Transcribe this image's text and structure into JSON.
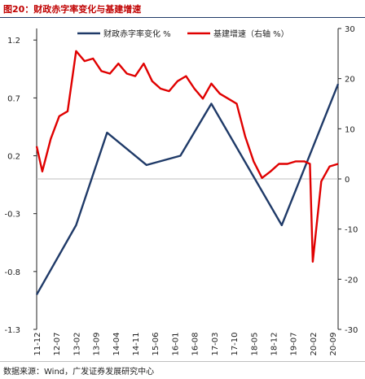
{
  "title": "图20：财政赤字率变化与基建增速",
  "source": "数据来源：Wind，广发证券发展研究中心",
  "colors": {
    "deficit": "#1f3a68",
    "infra": "#e00000",
    "zero_line": "#bfbfbf"
  },
  "chart_data": {
    "type": "line",
    "categories": [
      "11-12",
      "12-07",
      "13-02",
      "13-09",
      "14-04",
      "14-11",
      "15-06",
      "16-01",
      "16-08",
      "17-03",
      "17-10",
      "18-05",
      "18-12",
      "19-07",
      "20-02",
      "20-09"
    ],
    "x": [
      "11-12",
      "12-02",
      "12-04",
      "12-06",
      "12-07",
      "12-09",
      "12-11",
      "13-01",
      "13-02",
      "13-04",
      "13-06",
      "13-08",
      "13-09",
      "13-11",
      "14-01",
      "14-03",
      "14-04",
      "14-06",
      "14-08",
      "14-10",
      "14-11",
      "15-01",
      "15-03",
      "15-05",
      "15-06",
      "15-08",
      "15-10",
      "15-12",
      "16-01",
      "16-03",
      "16-05",
      "16-07",
      "16-08",
      "16-10",
      "16-12",
      "17-02",
      "17-03",
      "17-05",
      "17-07",
      "17-09",
      "17-10",
      "17-12",
      "18-02",
      "18-04",
      "18-05",
      "18-07",
      "18-09",
      "18-11",
      "18-12",
      "19-02",
      "19-04",
      "19-06",
      "19-07",
      "19-09",
      "19-11",
      "20-01",
      "20-02",
      "20-04",
      "20-06",
      "20-08",
      "20-09",
      "20-11"
    ],
    "series": [
      {
        "name": "财政赤字率变化 %",
        "axis": "left",
        "points": [
          {
            "x": "11-12",
            "y": -1.0
          },
          {
            "x": "13-02",
            "y": -0.4
          },
          {
            "x": "14-01",
            "y": 0.4
          },
          {
            "x": "15-03",
            "y": 0.12
          },
          {
            "x": "16-03",
            "y": 0.2
          },
          {
            "x": "17-02",
            "y": 0.65
          },
          {
            "x": "19-03",
            "y": -0.4
          },
          {
            "x": "20-11",
            "y": 0.82
          }
        ]
      },
      {
        "name": "基建增速（右轴 %）",
        "axis": "right",
        "points": [
          {
            "x": "11-12",
            "y": 6.5
          },
          {
            "x": "12-02",
            "y": 1.5
          },
          {
            "x": "12-05",
            "y": 8
          },
          {
            "x": "12-08",
            "y": 12.5
          },
          {
            "x": "12-11",
            "y": 13.5
          },
          {
            "x": "13-02",
            "y": 25.5
          },
          {
            "x": "13-05",
            "y": 23.5
          },
          {
            "x": "13-08",
            "y": 24
          },
          {
            "x": "13-11",
            "y": 21.5
          },
          {
            "x": "14-02",
            "y": 21
          },
          {
            "x": "14-05",
            "y": 23
          },
          {
            "x": "14-08",
            "y": 21
          },
          {
            "x": "14-11",
            "y": 20.5
          },
          {
            "x": "15-02",
            "y": 23
          },
          {
            "x": "15-05",
            "y": 19.5
          },
          {
            "x": "15-08",
            "y": 18
          },
          {
            "x": "15-11",
            "y": 17.5
          },
          {
            "x": "16-02",
            "y": 19.5
          },
          {
            "x": "16-05",
            "y": 20.5
          },
          {
            "x": "16-08",
            "y": 18
          },
          {
            "x": "16-11",
            "y": 16
          },
          {
            "x": "17-02",
            "y": 19
          },
          {
            "x": "17-05",
            "y": 17
          },
          {
            "x": "17-08",
            "y": 16
          },
          {
            "x": "17-11",
            "y": 15
          },
          {
            "x": "18-02",
            "y": 8.5
          },
          {
            "x": "18-05",
            "y": 3.5
          },
          {
            "x": "18-08",
            "y": 0.2
          },
          {
            "x": "18-11",
            "y": 1.5
          },
          {
            "x": "19-02",
            "y": 3
          },
          {
            "x": "19-05",
            "y": 3
          },
          {
            "x": "19-08",
            "y": 3.5
          },
          {
            "x": "19-11",
            "y": 3.5
          },
          {
            "x": "20-01",
            "y": 3
          },
          {
            "x": "20-02",
            "y": -16.5
          },
          {
            "x": "20-05",
            "y": -0.5
          },
          {
            "x": "20-08",
            "y": 2.5
          },
          {
            "x": "20-11",
            "y": 3
          }
        ]
      }
    ],
    "y_left": {
      "ticks": [
        -1.3,
        -0.8,
        -0.3,
        0.2,
        0.7,
        1.2
      ],
      "range": [
        -1.3,
        1.3
      ]
    },
    "y_right": {
      "ticks": [
        -30,
        -20,
        -10,
        0,
        10,
        20,
        30
      ],
      "range": [
        -30,
        30
      ]
    },
    "zero_line": {
      "axis": "right",
      "value": 0
    },
    "legend_position": "top"
  }
}
